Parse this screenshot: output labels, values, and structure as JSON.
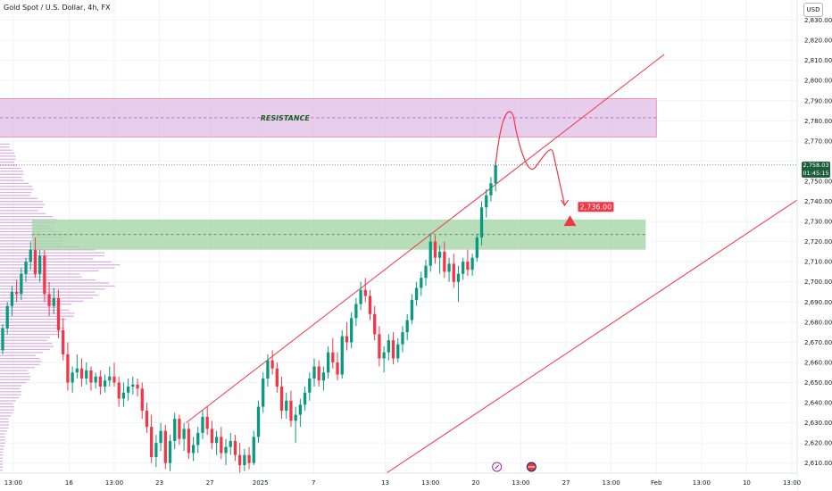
{
  "header": {
    "title": "Gold Spot / U.S. Dollar, 4h, FX",
    "currency": "USD"
  },
  "price_tag": {
    "price": "2,758.03",
    "countdown": "01:45:15"
  },
  "chart_data": {
    "type": "candlestick",
    "title": "Gold Spot / U.S. Dollar, 4h, FX",
    "y_range": [
      2605,
      2840
    ],
    "y_ticks": [
      2610,
      2620,
      2630,
      2640,
      2650,
      2660,
      2670,
      2680,
      2690,
      2700,
      2710,
      2720,
      2730,
      2740,
      2750,
      2760,
      2770,
      2780,
      2790,
      2800,
      2810,
      2820,
      2830
    ],
    "y_tick_labels": [
      "2,610.00",
      "2,620.00",
      "2,630.00",
      "2,640.00",
      "2,650.00",
      "2,660.00",
      "2,670.00",
      "2,680.00",
      "2,690.00",
      "2,700.00",
      "2,710.00",
      "2,720.00",
      "2,730.00",
      "2,740.00",
      "2,750.00",
      "2,760.00",
      "2,770.00",
      "2,780.00",
      "2,790.00",
      "2,800.00",
      "2,810.00",
      "2,820.00",
      "2,830.00"
    ],
    "x_range_bars": [
      0,
      300
    ],
    "x_ticks": [
      {
        "bar": 5,
        "label": "13:00"
      },
      {
        "bar": 26,
        "label": "16"
      },
      {
        "bar": 43,
        "label": "13:00"
      },
      {
        "bar": 60,
        "label": "23"
      },
      {
        "bar": 79,
        "label": "27"
      },
      {
        "bar": 98,
        "label": "2025"
      },
      {
        "bar": 118,
        "label": "7"
      },
      {
        "bar": 145,
        "label": "13"
      },
      {
        "bar": 162,
        "label": "13:00"
      },
      {
        "bar": 179,
        "label": "20"
      },
      {
        "bar": 196,
        "label": "13:00"
      },
      {
        "bar": 213,
        "label": "27"
      },
      {
        "bar": 230,
        "label": "13:00"
      },
      {
        "bar": 247,
        "label": "Feb"
      },
      {
        "bar": 264,
        "label": "13:00"
      },
      {
        "bar": 281,
        "label": "10"
      },
      {
        "bar": 298,
        "label": "13:00"
      }
    ],
    "colors": {
      "up": "#089981",
      "down": "#f23645",
      "channel": "#f23645",
      "resistance_zone": "#e1bee7",
      "support_zone": "#a5d6a7",
      "volume_profile": "#ce93d8",
      "current_price_label": "#1e5e3a"
    },
    "candles": [
      [
        2666,
        2679,
        2664,
        2677
      ],
      [
        2677,
        2690,
        2674,
        2688
      ],
      [
        2688,
        2698,
        2683,
        2695
      ],
      [
        2695,
        2701,
        2690,
        2694
      ],
      [
        2694,
        2707,
        2691,
        2704
      ],
      [
        2704,
        2712,
        2700,
        2710
      ],
      [
        2710,
        2720,
        2706,
        2716
      ],
      [
        2716,
        2722,
        2702,
        2704
      ],
      [
        2704,
        2716,
        2700,
        2713
      ],
      [
        2713,
        2716,
        2690,
        2694
      ],
      [
        2694,
        2700,
        2683,
        2688
      ],
      [
        2688,
        2697,
        2684,
        2692
      ],
      [
        2692,
        2696,
        2672,
        2676
      ],
      [
        2676,
        2682,
        2661,
        2664
      ],
      [
        2664,
        2670,
        2646,
        2650
      ],
      [
        2650,
        2658,
        2645,
        2655
      ],
      [
        2655,
        2664,
        2652,
        2657
      ],
      [
        2657,
        2662,
        2648,
        2652
      ],
      [
        2652,
        2660,
        2649,
        2656
      ],
      [
        2656,
        2658,
        2646,
        2650
      ],
      [
        2650,
        2655,
        2647,
        2653
      ],
      [
        2653,
        2656,
        2644,
        2648
      ],
      [
        2648,
        2654,
        2645,
        2651
      ],
      [
        2651,
        2658,
        2648,
        2653
      ],
      [
        2653,
        2660,
        2648,
        2650
      ],
      [
        2650,
        2653,
        2638,
        2642
      ],
      [
        2642,
        2650,
        2638,
        2645
      ],
      [
        2645,
        2652,
        2641,
        2648
      ],
      [
        2648,
        2653,
        2644,
        2649
      ],
      [
        2649,
        2652,
        2643,
        2647
      ],
      [
        2647,
        2650,
        2632,
        2636
      ],
      [
        2636,
        2640,
        2625,
        2628
      ],
      [
        2628,
        2634,
        2610,
        2613
      ],
      [
        2613,
        2624,
        2608,
        2620
      ],
      [
        2620,
        2630,
        2616,
        2626
      ],
      [
        2626,
        2629,
        2607,
        2610
      ],
      [
        2610,
        2624,
        2606,
        2621
      ],
      [
        2621,
        2635,
        2617,
        2632
      ],
      [
        2632,
        2634,
        2619,
        2622
      ],
      [
        2622,
        2630,
        2616,
        2627
      ],
      [
        2627,
        2630,
        2612,
        2615
      ],
      [
        2615,
        2623,
        2611,
        2619
      ],
      [
        2619,
        2628,
        2615,
        2625
      ],
      [
        2625,
        2636,
        2622,
        2633
      ],
      [
        2633,
        2638,
        2624,
        2627
      ],
      [
        2627,
        2631,
        2617,
        2620
      ],
      [
        2620,
        2626,
        2614,
        2623
      ],
      [
        2623,
        2628,
        2612,
        2615
      ],
      [
        2615,
        2622,
        2609,
        2618
      ],
      [
        2618,
        2625,
        2614,
        2621
      ],
      [
        2621,
        2624,
        2611,
        2614
      ],
      [
        2614,
        2620,
        2605,
        2609
      ],
      [
        2609,
        2617,
        2606,
        2614
      ],
      [
        2614,
        2618,
        2607,
        2610
      ],
      [
        2610,
        2626,
        2609,
        2623
      ],
      [
        2623,
        2641,
        2620,
        2638
      ],
      [
        2638,
        2655,
        2635,
        2652
      ],
      [
        2652,
        2664,
        2648,
        2661
      ],
      [
        2661,
        2666,
        2654,
        2657
      ],
      [
        2657,
        2660,
        2645,
        2648
      ],
      [
        2648,
        2653,
        2632,
        2636
      ],
      [
        2636,
        2645,
        2632,
        2641
      ],
      [
        2641,
        2646,
        2628,
        2631
      ],
      [
        2631,
        2638,
        2620,
        2634
      ],
      [
        2634,
        2642,
        2628,
        2639
      ],
      [
        2639,
        2648,
        2636,
        2645
      ],
      [
        2645,
        2655,
        2641,
        2652
      ],
      [
        2652,
        2662,
        2648,
        2658
      ],
      [
        2658,
        2661,
        2648,
        2651
      ],
      [
        2651,
        2658,
        2646,
        2655
      ],
      [
        2655,
        2668,
        2652,
        2665
      ],
      [
        2665,
        2672,
        2657,
        2660
      ],
      [
        2660,
        2665,
        2651,
        2654
      ],
      [
        2654,
        2676,
        2652,
        2673
      ],
      [
        2673,
        2680,
        2666,
        2670
      ],
      [
        2670,
        2685,
        2667,
        2682
      ],
      [
        2682,
        2692,
        2678,
        2689
      ],
      [
        2689,
        2700,
        2686,
        2696
      ],
      [
        2696,
        2702,
        2690,
        2693
      ],
      [
        2693,
        2696,
        2681,
        2684
      ],
      [
        2684,
        2688,
        2671,
        2674
      ],
      [
        2674,
        2678,
        2658,
        2662
      ],
      [
        2662,
        2668,
        2655,
        2665
      ],
      [
        2665,
        2674,
        2661,
        2671
      ],
      [
        2671,
        2675,
        2659,
        2662
      ],
      [
        2662,
        2672,
        2660,
        2669
      ],
      [
        2669,
        2678,
        2665,
        2675
      ],
      [
        2675,
        2684,
        2671,
        2681
      ],
      [
        2681,
        2694,
        2679,
        2691
      ],
      [
        2691,
        2700,
        2688,
        2697
      ],
      [
        2697,
        2705,
        2693,
        2702
      ],
      [
        2702,
        2711,
        2698,
        2708
      ],
      [
        2708,
        2724,
        2705,
        2720
      ],
      [
        2720,
        2723,
        2709,
        2712
      ],
      [
        2712,
        2718,
        2704,
        2715
      ],
      [
        2715,
        2720,
        2702,
        2705
      ],
      [
        2705,
        2712,
        2700,
        2709
      ],
      [
        2709,
        2714,
        2697,
        2700
      ],
      [
        2700,
        2708,
        2690,
        2704
      ],
      [
        2704,
        2712,
        2701,
        2710
      ],
      [
        2710,
        2716,
        2703,
        2706
      ],
      [
        2706,
        2714,
        2703,
        2712
      ],
      [
        2712,
        2724,
        2710,
        2722
      ],
      [
        2722,
        2740,
        2718,
        2737
      ],
      [
        2737,
        2746,
        2732,
        2743
      ],
      [
        2743,
        2752,
        2740,
        2749
      ],
      [
        2749,
        2760,
        2745,
        2758
      ]
    ],
    "channel_upper": [
      [
        70,
        2630
      ],
      [
        250,
        2813
      ]
    ],
    "channel_lower": [
      [
        142,
        2602
      ],
      [
        330,
        2767
      ]
    ],
    "resistance_zone": {
      "label": "RESISTANCE",
      "y_low": 2772,
      "y_high": 2791,
      "bar_start": -10,
      "bar_end": 247
    },
    "support_zone": {
      "y_low": 2716,
      "y_high": 2731,
      "bar_start": 12,
      "bar_end": 243
    },
    "projection_label": "2,736.00",
    "current_price": 2758.03
  }
}
